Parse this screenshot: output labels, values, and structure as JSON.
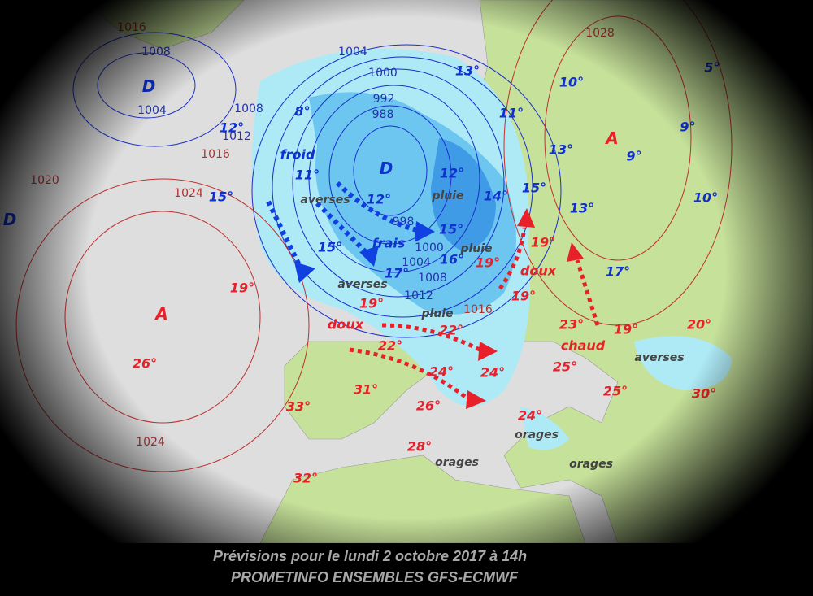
{
  "colors": {
    "sea": "#dedede",
    "land": "#c6e19a",
    "rain_light": "#aeeaf6",
    "rain_mid": "#6cc6f0",
    "rain_heavy": "#3f9be6",
    "isobar_low": "#1a2ecc",
    "isobar_high": "#c03030",
    "cold_text": "#1030d0",
    "warm_text": "#e8202a"
  },
  "footer": {
    "title": "Prévisions pour le lundi 2 octobre 2017 à 14h",
    "source": "PROMETINFO ENSEMBLES GFS-ECMWF"
  },
  "pressure_centers": [
    {
      "text": "D",
      "kind": "cold"
    },
    {
      "text": "D",
      "kind": "cold"
    },
    {
      "text": "D",
      "kind": "cold"
    },
    {
      "text": "A",
      "kind": "warm"
    },
    {
      "text": "A",
      "kind": "warm"
    }
  ],
  "isobar_labels": [
    "1016",
    "1008",
    "1004",
    "1000",
    "992",
    "988",
    "1004",
    "1008",
    "1012",
    "1016",
    "1020",
    "1024",
    "998",
    "1000",
    "1004",
    "1008",
    "1012",
    "1016",
    "1028",
    "1024"
  ],
  "cold_temps": [
    "13°",
    "10°",
    "5°",
    "8°",
    "11°",
    "9°",
    "12°",
    "13°",
    "9°",
    "11°",
    "12°",
    "14°",
    "15°",
    "15°",
    "12°",
    "10°",
    "13°",
    "15°",
    "15°",
    "16°",
    "17°",
    "17°"
  ],
  "warm_temps": [
    "19°",
    "19°",
    "19°",
    "19°",
    "19°",
    "26°",
    "22°",
    "22°",
    "23°",
    "19°",
    "20°",
    "24°",
    "24°",
    "25°",
    "25°",
    "30°",
    "31°",
    "33°",
    "26°",
    "24°",
    "28°",
    "32°"
  ],
  "words": {
    "froid": "froid",
    "frais": "frais",
    "doux1": "doux",
    "doux2": "doux",
    "chaud": "chaud",
    "averses1": "averses",
    "averses2": "averses",
    "averses3": "averses",
    "pluie1": "pluie",
    "pluie2": "pluie",
    "pluie3": "pluie",
    "orages1": "orages",
    "orages2": "orages",
    "orages3": "orages"
  },
  "arrows": [
    {
      "type": "cold",
      "direction": "south"
    },
    {
      "type": "cold",
      "direction": "south-east"
    },
    {
      "type": "cold",
      "direction": "east"
    },
    {
      "type": "warm",
      "direction": "east"
    },
    {
      "type": "warm",
      "direction": "east"
    },
    {
      "type": "warm",
      "direction": "north"
    },
    {
      "type": "warm",
      "direction": "north"
    }
  ]
}
